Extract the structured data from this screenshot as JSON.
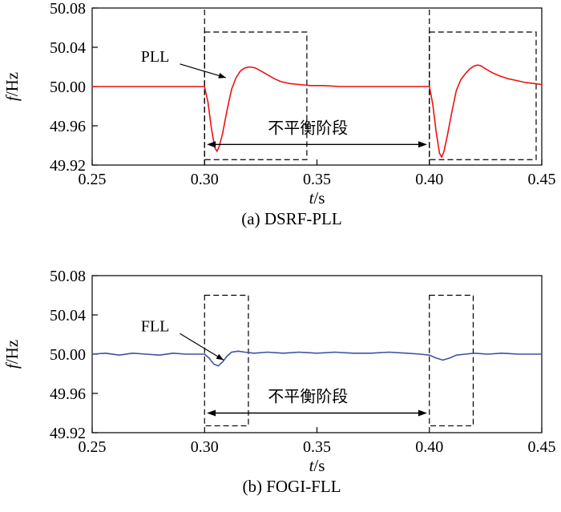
{
  "page": {
    "background": "#ffffff",
    "axis_color": "#000000"
  },
  "chart_data": [
    {
      "type": "line",
      "caption": "(a) DSRF-PLL",
      "xlabel": {
        "var": "t",
        "unit": "/s"
      },
      "ylabel": {
        "var": "f",
        "unit": "/Hz"
      },
      "xlim": [
        0.25,
        0.45
      ],
      "ylim": [
        49.92,
        50.08
      ],
      "grid": false,
      "xticks": {
        "values": [
          0.25,
          0.3,
          0.35,
          0.4,
          0.45
        ],
        "labels": [
          "0.25",
          "0.30",
          "0.35",
          "0.40",
          "0.45"
        ]
      },
      "yticks": {
        "values": [
          50.08,
          50.04,
          50.0,
          49.96,
          49.92
        ],
        "labels": [
          "50.08",
          "50.04",
          "50.00",
          "49.96",
          "49.92"
        ]
      },
      "series": [
        {
          "name": "PLL",
          "color": "#ee1111",
          "x": [
            0.25,
            0.26,
            0.27,
            0.28,
            0.29,
            0.298,
            0.3,
            0.3015,
            0.303,
            0.3045,
            0.3055,
            0.3065,
            0.308,
            0.31,
            0.312,
            0.314,
            0.316,
            0.318,
            0.32,
            0.3225,
            0.325,
            0.328,
            0.331,
            0.334,
            0.338,
            0.342,
            0.347,
            0.353,
            0.36,
            0.37,
            0.38,
            0.39,
            0.398,
            0.4,
            0.4015,
            0.403,
            0.4045,
            0.4055,
            0.4065,
            0.408,
            0.41,
            0.412,
            0.414,
            0.416,
            0.418,
            0.42,
            0.4215,
            0.423,
            0.425,
            0.428,
            0.431,
            0.435,
            0.439,
            0.443,
            0.447,
            0.45
          ],
          "y": [
            50.0,
            50.0,
            50.0,
            50.0,
            50.0,
            50.0,
            50.0,
            49.984,
            49.958,
            49.938,
            49.934,
            49.939,
            49.952,
            49.976,
            49.997,
            50.009,
            50.016,
            50.019,
            50.02,
            50.019,
            50.016,
            50.012,
            50.008,
            50.005,
            50.003,
            50.002,
            50.001,
            50.001,
            50.0,
            50.0,
            50.0,
            50.0,
            50.0,
            50.0,
            49.982,
            49.954,
            49.932,
            49.928,
            49.934,
            49.95,
            49.974,
            49.996,
            50.007,
            50.013,
            50.018,
            50.021,
            50.022,
            50.021,
            50.018,
            50.014,
            50.011,
            50.008,
            50.006,
            50.004,
            50.003,
            50.002
          ]
        }
      ],
      "guide_lines": [
        {
          "x": 0.3,
          "y0": 49.92,
          "y1": 50.08
        },
        {
          "x": 0.4,
          "y0": 49.92,
          "y1": 50.08
        }
      ],
      "dashed_boxes": [
        {
          "x0": 0.3,
          "x1": 0.3455,
          "y0": 49.9255,
          "y1": 50.0555
        },
        {
          "x0": 0.4,
          "x1": 0.4475,
          "y0": 49.9255,
          "y1": 50.0555
        }
      ],
      "span_arrow": {
        "x0": 0.301,
        "x1": 0.399,
        "y": 49.941,
        "label": "不平衡阶段",
        "label_x": 0.346,
        "label_y": 49.956
      },
      "pointer": {
        "label": "PLL",
        "label_x": 0.278,
        "label_y": 50.029,
        "x0": 0.289,
        "y0": 50.023,
        "x1": 0.3095,
        "y1": 50.009
      }
    },
    {
      "type": "line",
      "caption": "(b) FOGI-FLL",
      "xlabel": {
        "var": "t",
        "unit": "/s"
      },
      "ylabel": {
        "var": "f",
        "unit": "/Hz"
      },
      "xlim": [
        0.25,
        0.45
      ],
      "ylim": [
        49.92,
        50.08
      ],
      "grid": false,
      "xticks": {
        "values": [
          0.25,
          0.3,
          0.35,
          0.4,
          0.45
        ],
        "labels": [
          "0.25",
          "0.30",
          "0.35",
          "0.40",
          "0.45"
        ]
      },
      "yticks": {
        "values": [
          50.08,
          50.04,
          50.0,
          49.96,
          49.92
        ],
        "labels": [
          "50.08",
          "50.04",
          "50.00",
          "49.96",
          "49.92"
        ]
      },
      "series": [
        {
          "name": "FLL",
          "color": "#3a53a4",
          "x": [
            0.25,
            0.256,
            0.262,
            0.268,
            0.274,
            0.28,
            0.286,
            0.292,
            0.298,
            0.3,
            0.302,
            0.304,
            0.306,
            0.308,
            0.31,
            0.312,
            0.315,
            0.318,
            0.322,
            0.328,
            0.335,
            0.342,
            0.35,
            0.358,
            0.366,
            0.374,
            0.382,
            0.39,
            0.396,
            0.4,
            0.403,
            0.406,
            0.409,
            0.412,
            0.416,
            0.42,
            0.426,
            0.432,
            0.44,
            0.45
          ],
          "y": [
            50.0,
            50.001,
            49.999,
            50.001,
            50.0,
            49.999,
            50.001,
            50.0,
            50.0,
            50.0,
            49.996,
            49.99,
            49.988,
            49.992,
            49.998,
            50.002,
            50.003,
            50.002,
            50.001,
            50.002,
            50.001,
            50.002,
            50.001,
            50.002,
            50.001,
            50.001,
            50.002,
            50.001,
            50.0,
            49.999,
            49.996,
            49.994,
            49.996,
            49.999,
            50.0,
            50.001,
            50.0,
            50.001,
            50.0,
            50.0
          ]
        }
      ],
      "guide_lines": [],
      "dashed_boxes": [
        {
          "x0": 0.3,
          "x1": 0.3195,
          "y0": 49.927,
          "y1": 50.06
        },
        {
          "x0": 0.4,
          "x1": 0.4195,
          "y0": 49.927,
          "y1": 50.06
        }
      ],
      "span_arrow": {
        "x0": 0.301,
        "x1": 0.399,
        "y": 49.94,
        "label": "不平衡阶段",
        "label_x": 0.346,
        "label_y": 49.955
      },
      "pointer": {
        "label": "FLL",
        "label_x": 0.278,
        "label_y": 50.027,
        "x0": 0.289,
        "y0": 50.021,
        "x1": 0.3085,
        "y1": 49.994
      }
    }
  ]
}
